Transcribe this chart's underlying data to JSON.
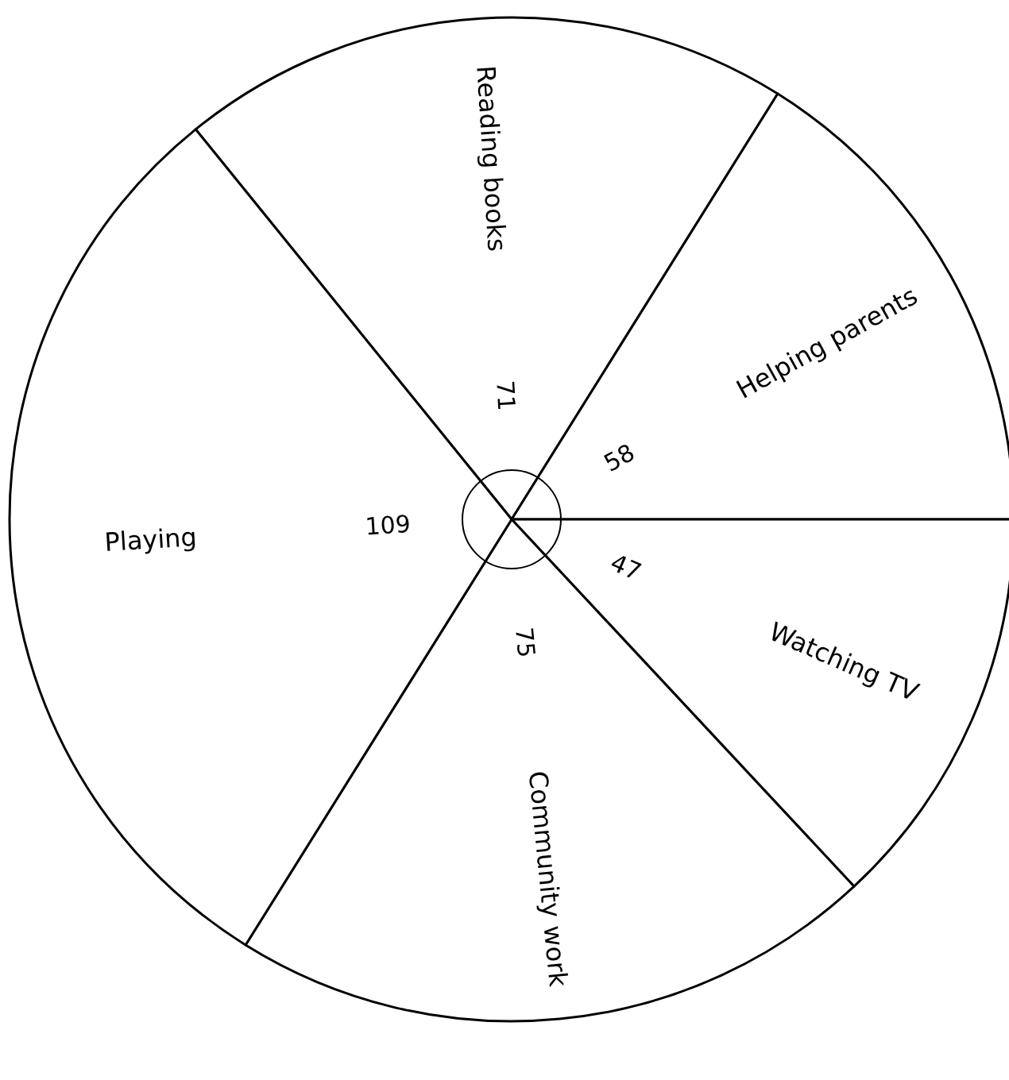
{
  "chart_data": {
    "type": "pie",
    "categories": [
      "Reading books",
      "Helping parents",
      "Watching TV",
      "Community work",
      "Playing"
    ],
    "values": [
      71,
      58,
      47,
      75,
      109
    ],
    "colors": [
      "#ffffff",
      "#ffffff",
      "#ffffff",
      "#ffffff",
      "#ffffff"
    ],
    "data_labels": true,
    "legend": false
  }
}
